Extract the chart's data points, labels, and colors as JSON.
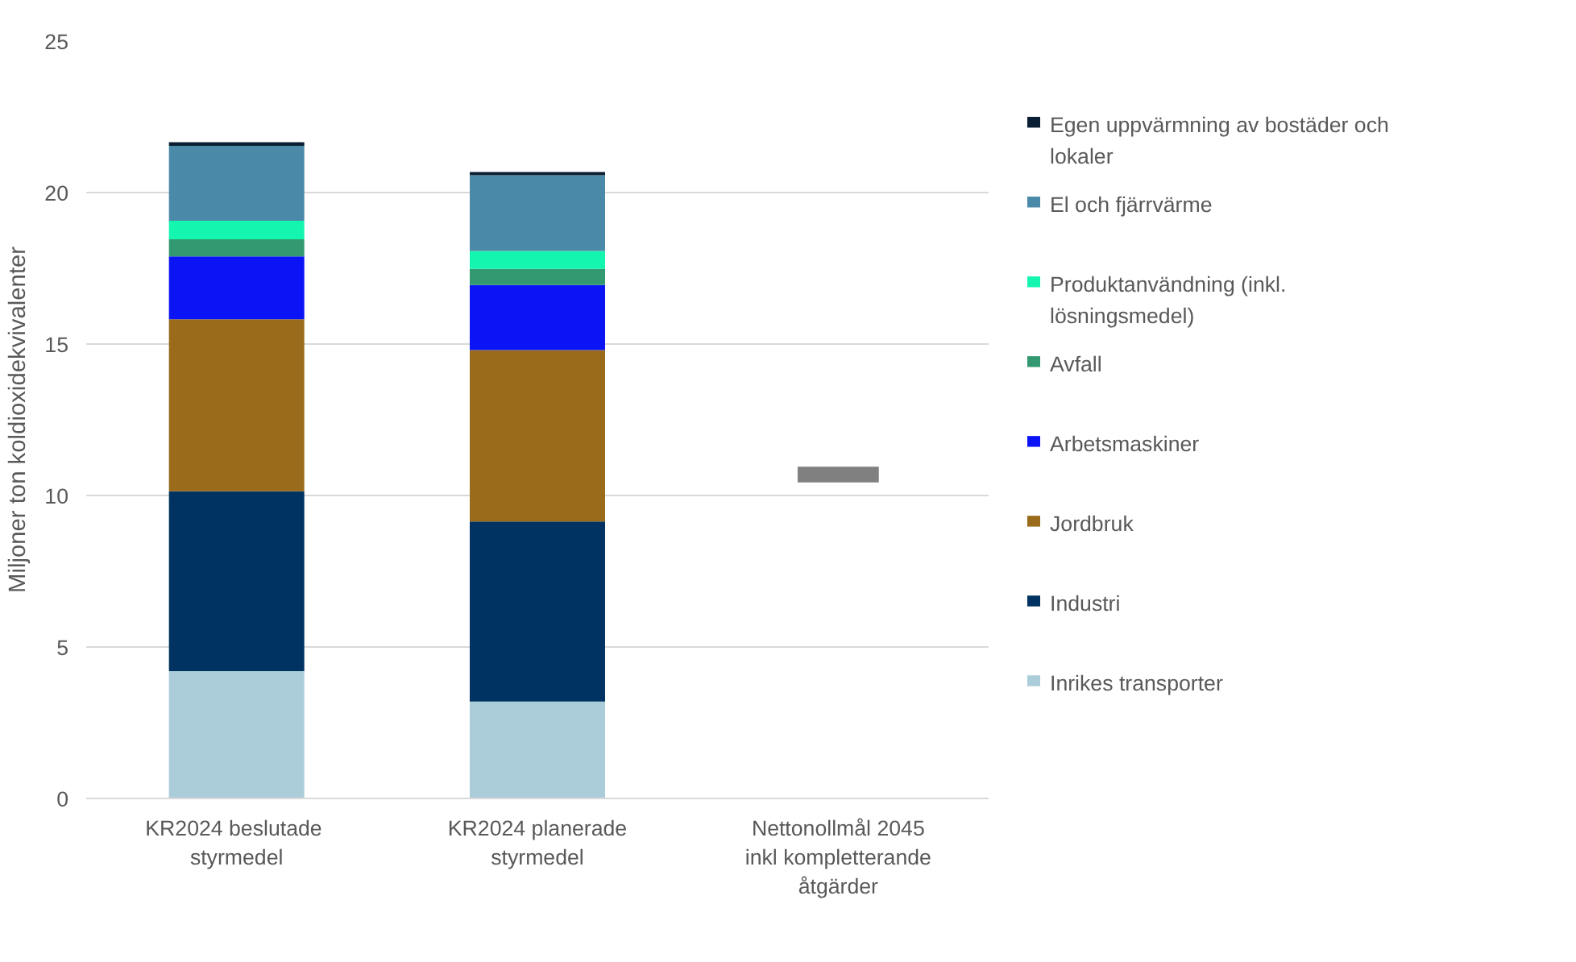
{
  "chart_data": {
    "type": "bar",
    "stacked": true,
    "ylabel": "Miljoner ton koldioxidekvivalenter",
    "categories": [
      "KR2024  beslutade styrmedel",
      "KR2024 planerade styrmedel",
      "Nettonollmål 2045 inkl kompletterande åtgärder"
    ],
    "ylim": [
      0,
      25
    ],
    "yticks": [
      0,
      5,
      10,
      15,
      20,
      25
    ],
    "grid": "y",
    "legend": "right",
    "series": [
      {
        "name": "Inrikes transporter",
        "color": "#abcdd9",
        "values": [
          4.2,
          3.2,
          null
        ]
      },
      {
        "name": "Industri",
        "color": "#003361",
        "values": [
          5.94,
          5.94,
          null
        ]
      },
      {
        "name": "Jordbruk",
        "color": "#996b1a",
        "values": [
          5.68,
          5.66,
          null
        ]
      },
      {
        "name": "Arbetsmaskiner",
        "color": "#0a14f5",
        "values": [
          2.07,
          2.15,
          null
        ]
      },
      {
        "name": "Avfall",
        "color": "#339970",
        "values": [
          0.57,
          0.53,
          null
        ]
      },
      {
        "name": "Produktanvändning (inkl. lösningsmedel)",
        "color": "#14f5b0",
        "values": [
          0.61,
          0.59,
          null
        ]
      },
      {
        "name": "El och fjärrvärme",
        "color": "#4a8aa8",
        "values": [
          2.47,
          2.5,
          null
        ]
      },
      {
        "name": "Egen uppvärmning av bostäder och lokaler",
        "color": "#0a1f33",
        "values": [
          0.12,
          0.11,
          null
        ]
      },
      {
        "type": "bar",
        "color": "#808080",
        "base": [
          null,
          null,
          10.43
        ],
        "values": [
          null,
          null,
          0.52
        ]
      }
    ]
  }
}
